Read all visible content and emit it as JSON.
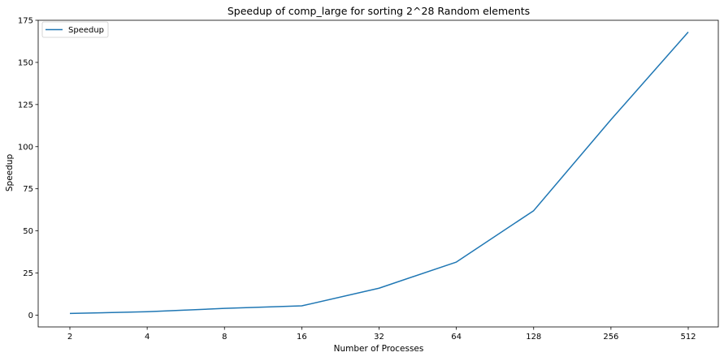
{
  "chart_data": {
    "type": "line",
    "title": "Speedup of comp_large for sorting 2^28 Random elements",
    "xlabel": "Number of Processes",
    "ylabel": "Speedup",
    "categories": [
      "2",
      "4",
      "8",
      "16",
      "32",
      "64",
      "128",
      "256",
      "512"
    ],
    "series": [
      {
        "name": "Speedup",
        "color": "#1f77b4",
        "values": [
          1.0,
          2.0,
          4.0,
          5.5,
          16.0,
          31.5,
          62.0,
          116.0,
          168.0
        ]
      }
    ],
    "ylim": [
      -7,
      175
    ],
    "yticks": [
      0,
      25,
      50,
      75,
      100,
      125,
      150,
      175
    ],
    "grid": false,
    "legend": "top-left"
  }
}
